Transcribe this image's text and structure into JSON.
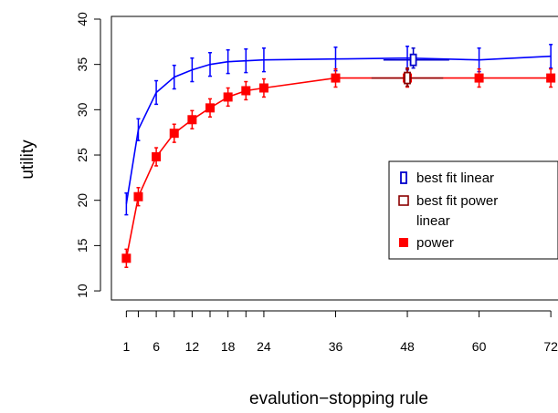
{
  "chart_data": {
    "type": "line",
    "xlabel": "evalution−stopping rule",
    "ylabel": "utility",
    "xlim": [
      -1.5,
      73.2
    ],
    "ylim": [
      9,
      40.3
    ],
    "x_ticks": [
      1,
      6,
      12,
      18,
      24,
      36,
      48,
      60,
      72
    ],
    "x_tick_labels": [
      "1",
      "6",
      "12",
      "18",
      "24",
      "36",
      "48",
      "60",
      "72"
    ],
    "y_ticks": [
      10,
      15,
      20,
      25,
      30,
      35,
      40
    ],
    "y_tick_labels": [
      "10",
      "15",
      "20",
      "25",
      "30",
      "35",
      "40"
    ],
    "grid": false,
    "legend_position": "right",
    "legend": [
      {
        "label": "best fit linear",
        "marker": "open-square",
        "color": "#0000cc"
      },
      {
        "label": "best fit power",
        "marker": "open-square",
        "color": "#8b0000"
      },
      {
        "label": "linear",
        "marker": "none",
        "color": "#0000ff"
      },
      {
        "label": "power",
        "marker": "filled-square",
        "color": "#ff0000"
      }
    ],
    "series": [
      {
        "name": "linear",
        "color": "#0000ff",
        "x": [
          1,
          3,
          6,
          9,
          12,
          15,
          18,
          21,
          24,
          36,
          48,
          60,
          72
        ],
        "y": [
          19.6,
          27.8,
          31.9,
          33.6,
          34.4,
          35.0,
          35.3,
          35.4,
          35.5,
          35.6,
          35.7,
          35.5,
          35.9
        ],
        "err": [
          1.2,
          1.2,
          1.3,
          1.3,
          1.3,
          1.3,
          1.3,
          1.3,
          1.3,
          1.3,
          1.3,
          1.3,
          1.3
        ]
      },
      {
        "name": "power",
        "color": "#ff0000",
        "x": [
          1,
          3,
          6,
          9,
          12,
          15,
          18,
          21,
          24,
          36,
          48,
          60,
          72
        ],
        "y": [
          13.6,
          20.4,
          24.8,
          27.4,
          28.9,
          30.2,
          31.4,
          32.1,
          32.4,
          33.5,
          33.5,
          33.5,
          33.5
        ],
        "err": [
          1.0,
          1.0,
          1.0,
          1.0,
          1.0,
          1.0,
          1.0,
          1.0,
          1.0,
          1.0,
          1.0,
          1.0,
          1.0
        ]
      }
    ],
    "best_fit": [
      {
        "name": "best fit linear",
        "color": "#0000cc",
        "x": 49,
        "y": 35.5,
        "x_err": [
          44,
          55
        ],
        "y_err": [
          34.6,
          36.8
        ]
      },
      {
        "name": "best fit power",
        "color": "#8b0000",
        "x": 48,
        "y": 33.5,
        "x_err": [
          42,
          54
        ],
        "y_err": [
          32.6,
          34.6
        ]
      }
    ]
  }
}
